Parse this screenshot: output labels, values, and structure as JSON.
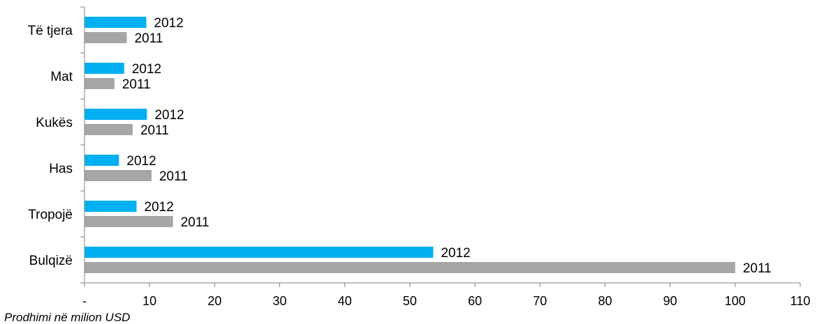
{
  "chart_data": {
    "type": "bar",
    "orientation": "horizontal",
    "categories": [
      "Bulqizë",
      "Tropojë",
      "Has",
      "Kukës",
      "Mat",
      "Të tjera"
    ],
    "series": [
      {
        "name": "2012",
        "color": "#00B0F0",
        "values": [
          53.6,
          8.0,
          5.3,
          9.6,
          6.1,
          9.5
        ]
      },
      {
        "name": "2011",
        "color": "#A6A6A6",
        "values": [
          100.0,
          13.6,
          10.3,
          7.4,
          4.6,
          6.5
        ]
      }
    ],
    "xlabel": "Prodhimi në milion USD",
    "xlim": [
      0,
      110
    ],
    "xticks": [
      0,
      10,
      20,
      30,
      40,
      50,
      60,
      70,
      80,
      90,
      100,
      110
    ],
    "xtick_labels": [
      "-",
      "10",
      "20",
      "30",
      "40",
      "50",
      "60",
      "70",
      "80",
      "90",
      "100",
      "110"
    ],
    "data_labels": "series name",
    "grid": false,
    "legend": "none"
  }
}
